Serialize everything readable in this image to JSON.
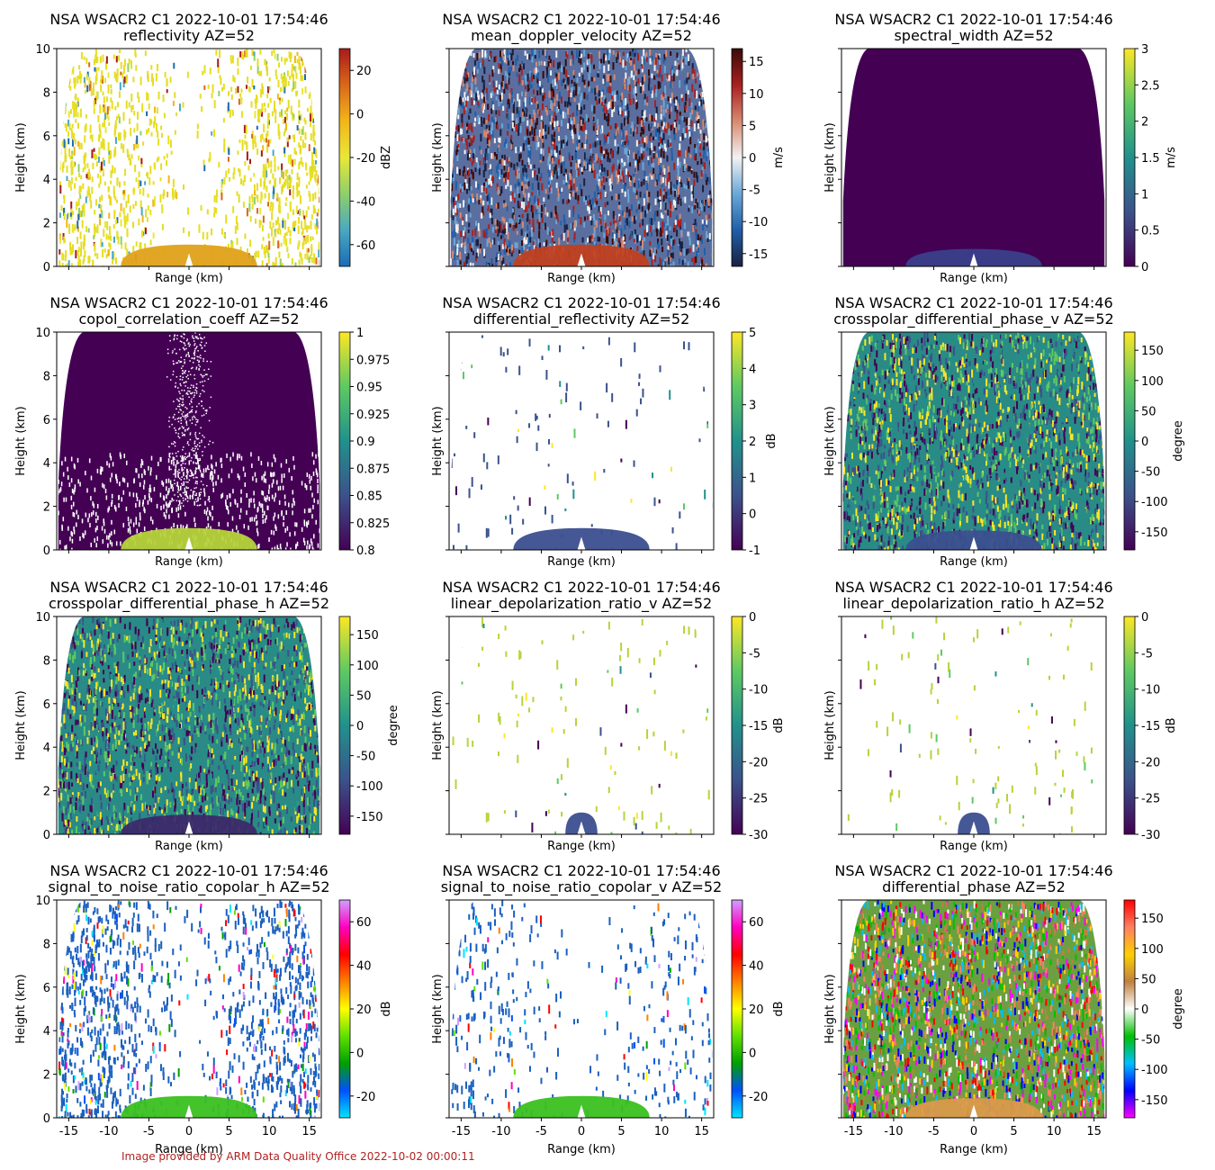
{
  "footer": "Image provided by ARM Data Quality Office 2022-10-02 00:00:11",
  "chart_data": [
    {
      "type": "heatmap",
      "title": "NSA WSACR2 C1 2022-10-01 17:54:46",
      "subtitle": "reflectivity  AZ=52",
      "xlabel": "Range (km)",
      "ylabel": "Height (km)",
      "xlim": [
        -16.5,
        16.5
      ],
      "ylim": [
        0,
        10
      ],
      "cbar_label": "dBZ",
      "cbar_range": [
        -70,
        30
      ],
      "cbar_ticks": [
        -60,
        -40,
        -20,
        0,
        20
      ],
      "colormap": [
        "#1a6bb5",
        "#4aa8c0",
        "#8fcf6a",
        "#e8e838",
        "#f2b619",
        "#d9681a",
        "#a81a1a"
      ],
      "pattern": {
        "fill": "sparse",
        "base_color": "#e6de22",
        "cloud_color": "#e0a11a",
        "cloud_top_km": 1.0
      }
    },
    {
      "type": "heatmap",
      "title": "NSA WSACR2 C1 2022-10-01 17:54:46",
      "subtitle": "mean_doppler_velocity  AZ=52",
      "xlabel": "Range (km)",
      "ylabel": "Height (km)",
      "xlim": [
        -16.5,
        16.5
      ],
      "ylim": [
        0,
        10
      ],
      "cbar_label": "m/s",
      "cbar_range": [
        -17,
        17
      ],
      "cbar_ticks": [
        -15,
        -10,
        -5,
        0,
        5,
        10,
        15
      ],
      "colormap": [
        "#1a2040",
        "#1f5fa8",
        "#6aa8d8",
        "#f2f2f2",
        "#d88a70",
        "#a82020",
        "#3a0a0a"
      ],
      "pattern": {
        "fill": "dense",
        "base_color": "#5a6fa0",
        "cloud_color": "#c04020",
        "cloud_top_km": 1.0
      }
    },
    {
      "type": "heatmap",
      "title": "NSA WSACR2 C1 2022-10-01 17:54:46",
      "subtitle": "spectral_width  AZ=52",
      "xlabel": "Range (km)",
      "ylabel": "Height (km)",
      "xlim": [
        -16.5,
        16.5
      ],
      "ylim": [
        0,
        10
      ],
      "cbar_label": "m/s",
      "cbar_range": [
        0,
        3
      ],
      "cbar_ticks": [
        0.0,
        0.5,
        1.0,
        1.5,
        2.0,
        2.5,
        3.0
      ],
      "colormap": [
        "#440154",
        "#3b528b",
        "#21918c",
        "#5ec962",
        "#fde725"
      ],
      "pattern": {
        "fill": "solid",
        "base_color": "#440154",
        "cloud_color": "#3b3f8a",
        "cloud_top_km": 0.8
      }
    },
    {
      "type": "heatmap",
      "title": "NSA WSACR2 C1 2022-10-01 17:54:46",
      "subtitle": "copol_correlation_coeff  AZ=52",
      "xlabel": "Range (km)",
      "ylabel": "Height (km)",
      "xlim": [
        -16.5,
        16.5
      ],
      "ylim": [
        0,
        10
      ],
      "cbar_label": "",
      "cbar_range": [
        0.8,
        1.0
      ],
      "cbar_ticks": [
        0.8,
        0.825,
        0.85,
        0.875,
        0.9,
        0.925,
        0.95,
        0.975,
        1.0
      ],
      "colormap": [
        "#440154",
        "#3b528b",
        "#21918c",
        "#5ec962",
        "#fde725"
      ],
      "pattern": {
        "fill": "solid",
        "base_color": "#440154",
        "cloud_color": "#b5d43a",
        "cloud_top_km": 1.0
      }
    },
    {
      "type": "heatmap",
      "title": "NSA WSACR2 C1 2022-10-01 17:54:46",
      "subtitle": "differential_reflectivity  AZ=52",
      "xlabel": "Range (km)",
      "ylabel": "Height (km)",
      "xlim": [
        -16.5,
        16.5
      ],
      "ylim": [
        0,
        10
      ],
      "cbar_label": "dB",
      "cbar_range": [
        -1,
        5
      ],
      "cbar_ticks": [
        -1,
        0,
        1,
        2,
        3,
        4,
        5
      ],
      "colormap": [
        "#440154",
        "#3b528b",
        "#21918c",
        "#5ec962",
        "#fde725"
      ],
      "pattern": {
        "fill": "empty",
        "base_color": "#3b528b",
        "cloud_color": "#3b4f8f",
        "cloud_top_km": 1.0
      }
    },
    {
      "type": "heatmap",
      "title": "NSA WSACR2 C1 2022-10-01 17:54:46",
      "subtitle": "crosspolar_differential_phase_v  AZ=52",
      "xlabel": "Range (km)",
      "ylabel": "Height (km)",
      "xlim": [
        -16.5,
        16.5
      ],
      "ylim": [
        0,
        10
      ],
      "cbar_label": "degree",
      "cbar_range": [
        -180,
        180
      ],
      "cbar_ticks": [
        -150,
        -100,
        -50,
        0,
        50,
        100,
        150
      ],
      "colormap": [
        "#440154",
        "#3b528b",
        "#21918c",
        "#5ec962",
        "#fde725"
      ],
      "pattern": {
        "fill": "noise",
        "base_color": "#2a8a86",
        "cloud_color": "#3b4f8f",
        "cloud_top_km": 0.9
      }
    },
    {
      "type": "heatmap",
      "title": "NSA WSACR2 C1 2022-10-01 17:54:46",
      "subtitle": "crosspolar_differential_phase_h  AZ=52",
      "xlabel": "Range (km)",
      "ylabel": "Height (km)",
      "xlim": [
        -16.5,
        16.5
      ],
      "ylim": [
        0,
        10
      ],
      "cbar_label": "degree",
      "cbar_range": [
        -180,
        180
      ],
      "cbar_ticks": [
        -150,
        -100,
        -50,
        0,
        50,
        100,
        150
      ],
      "colormap": [
        "#440154",
        "#3b528b",
        "#21918c",
        "#5ec962",
        "#fde725"
      ],
      "pattern": {
        "fill": "noise",
        "base_color": "#2a8a86",
        "cloud_color": "#3b2a6a",
        "cloud_top_km": 0.9
      }
    },
    {
      "type": "heatmap",
      "title": "NSA WSACR2 C1 2022-10-01 17:54:46",
      "subtitle": "linear_depolarization_ratio_v  AZ=52",
      "xlabel": "Range (km)",
      "ylabel": "Height (km)",
      "xlim": [
        -16.5,
        16.5
      ],
      "ylim": [
        0,
        10
      ],
      "cbar_label": "dB",
      "cbar_range": [
        -30,
        0
      ],
      "cbar_ticks": [
        -30,
        -25,
        -20,
        -15,
        -10,
        -5,
        0
      ],
      "colormap": [
        "#440154",
        "#3b528b",
        "#21918c",
        "#5ec962",
        "#fde725"
      ],
      "pattern": {
        "fill": "empty",
        "base_color": "#b5d43a",
        "cloud_color": "#3b4f8f",
        "cloud_top_km": 1.0
      }
    },
    {
      "type": "heatmap",
      "title": "NSA WSACR2 C1 2022-10-01 17:54:46",
      "subtitle": "linear_depolarization_ratio_h  AZ=52",
      "xlabel": "Range (km)",
      "ylabel": "Height (km)",
      "xlim": [
        -16.5,
        16.5
      ],
      "ylim": [
        0,
        10
      ],
      "cbar_label": "dB",
      "cbar_range": [
        -30,
        0
      ],
      "cbar_ticks": [
        -30,
        -25,
        -20,
        -15,
        -10,
        -5,
        0
      ],
      "colormap": [
        "#440154",
        "#3b528b",
        "#21918c",
        "#5ec962",
        "#fde725"
      ],
      "pattern": {
        "fill": "empty",
        "base_color": "#b5d43a",
        "cloud_color": "#3b4f8f",
        "cloud_top_km": 1.0
      }
    },
    {
      "type": "heatmap",
      "title": "NSA WSACR2 C1 2022-10-01 17:54:46",
      "subtitle": "signal_to_noise_ratio_copolar_h  AZ=52",
      "xlabel": "Range (km)",
      "ylabel": "Height (km)",
      "xlim": [
        -16.5,
        16.5
      ],
      "ylim": [
        0,
        10
      ],
      "xticks": [
        -15,
        -10,
        -5,
        0,
        5,
        10,
        15
      ],
      "cbar_label": "dB",
      "cbar_range": [
        -30,
        70
      ],
      "cbar_ticks": [
        -20,
        0,
        20,
        40,
        60
      ],
      "colormap": [
        "#00e5ff",
        "#0050ff",
        "#00a000",
        "#60e000",
        "#ffff00",
        "#ff8000",
        "#ff0000",
        "#ff00c0",
        "#d0a0ff"
      ],
      "pattern": {
        "fill": "sparse",
        "base_color": "#1a60c0",
        "cloud_color": "#3ac020",
        "cloud_top_km": 1.0
      }
    },
    {
      "type": "heatmap",
      "title": "NSA WSACR2 C1 2022-10-01 17:54:46",
      "subtitle": "signal_to_noise_ratio_copolar_v  AZ=52",
      "xlabel": "Range (km)",
      "ylabel": "Height (km)",
      "xlim": [
        -16.5,
        16.5
      ],
      "ylim": [
        0,
        10
      ],
      "xticks": [
        -15,
        -10,
        -5,
        0,
        5,
        10,
        15
      ],
      "cbar_label": "dB",
      "cbar_range": [
        -30,
        70
      ],
      "cbar_ticks": [
        -20,
        0,
        20,
        40,
        60
      ],
      "colormap": [
        "#00e5ff",
        "#0050ff",
        "#00a000",
        "#60e000",
        "#ffff00",
        "#ff8000",
        "#ff0000",
        "#ff00c0",
        "#d0a0ff"
      ],
      "pattern": {
        "fill": "sparse-light",
        "base_color": "#1a60c0",
        "cloud_color": "#3ac020",
        "cloud_top_km": 1.0
      }
    },
    {
      "type": "heatmap",
      "title": "NSA WSACR2 C1 2022-10-01 17:54:46",
      "subtitle": "differential_phase  AZ=52",
      "xlabel": "Range (km)",
      "ylabel": "Height (km)",
      "xlim": [
        -16.5,
        16.5
      ],
      "ylim": [
        0,
        10
      ],
      "xticks": [
        -15,
        -10,
        -5,
        0,
        5,
        10,
        15
      ],
      "cbar_label": "degree",
      "cbar_range": [
        -180,
        180
      ],
      "cbar_ticks": [
        -150,
        -100,
        -50,
        0,
        50,
        100,
        150
      ],
      "colormap": [
        "#ff00ff",
        "#0000ff",
        "#00c0ff",
        "#00c000",
        "#ffffff",
        "#c08040",
        "#ffd000",
        "#ff8060",
        "#ff0000"
      ],
      "pattern": {
        "fill": "noise-phase",
        "base_color": "#6aa040",
        "cloud_color": "#d99a4a",
        "cloud_top_km": 0.9
      }
    }
  ]
}
